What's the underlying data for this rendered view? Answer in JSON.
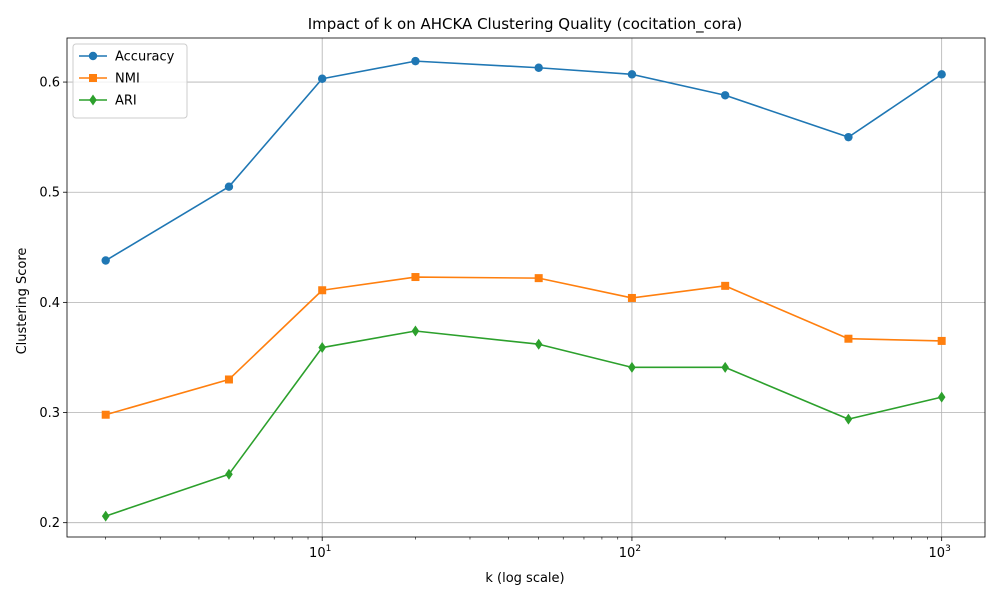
{
  "chart_data": {
    "type": "line",
    "title": "Impact of k on AHCKA Clustering Quality (cocitation_cora)",
    "xlabel": "k (log scale)",
    "ylabel": "Clustering Score",
    "xscale": "log",
    "xlim": [
      1.5,
      1380
    ],
    "ylim": [
      0.187,
      0.64
    ],
    "x": [
      2,
      5,
      10,
      20,
      50,
      100,
      200,
      500,
      1000
    ],
    "x_major_ticks": [
      10,
      100,
      1000
    ],
    "x_tick_base": "10",
    "x_tick_exponents": [
      "1",
      "2",
      "3"
    ],
    "y_ticks": [
      0.2,
      0.3,
      0.4,
      0.5,
      0.6
    ],
    "y_tick_labels": [
      "0.2",
      "0.3",
      "0.4",
      "0.5",
      "0.6"
    ],
    "grid": true,
    "legend_position": "top-left",
    "series": [
      {
        "name": "Accuracy",
        "color": "#1f77b4",
        "marker": "circle",
        "values": [
          0.438,
          0.505,
          0.603,
          0.619,
          0.613,
          0.607,
          0.588,
          0.55,
          0.607
        ]
      },
      {
        "name": "NMI",
        "color": "#ff7f0e",
        "marker": "square",
        "values": [
          0.298,
          0.33,
          0.411,
          0.423,
          0.422,
          0.404,
          0.415,
          0.367,
          0.365
        ]
      },
      {
        "name": "ARI",
        "color": "#2ca02c",
        "marker": "diamond",
        "values": [
          0.206,
          0.244,
          0.359,
          0.374,
          0.362,
          0.341,
          0.341,
          0.294,
          0.314
        ]
      }
    ]
  }
}
